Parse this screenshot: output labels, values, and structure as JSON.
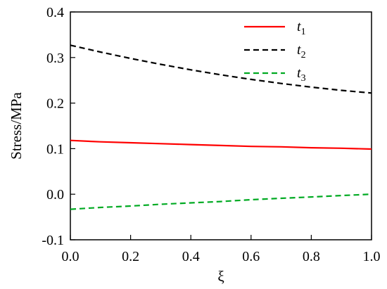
{
  "chart_data": {
    "type": "line",
    "xlabel": "ξ",
    "ylabel": "Stress/MPa",
    "xlim": [
      0.0,
      1.0
    ],
    "ylim": [
      -0.1,
      0.4
    ],
    "xticks": [
      "0.0",
      "0.2",
      "0.4",
      "0.6",
      "0.8",
      "1.0"
    ],
    "yticks": [
      "-0.1",
      "0.0",
      "0.1",
      "0.2",
      "0.3",
      "0.4"
    ],
    "grid": false,
    "legend_position": "top-right",
    "series": [
      {
        "name": "t1",
        "name_base": "t",
        "name_sub": "1",
        "color": "#ff0000",
        "style": "solid",
        "x": [
          0.0,
          0.1,
          0.2,
          0.3,
          0.4,
          0.5,
          0.6,
          0.7,
          0.8,
          0.9,
          1.0
        ],
        "y": [
          0.118,
          0.115,
          0.113,
          0.111,
          0.109,
          0.107,
          0.105,
          0.104,
          0.102,
          0.101,
          0.099
        ]
      },
      {
        "name": "t2",
        "name_base": "t",
        "name_sub": "2",
        "color": "#000000",
        "style": "dashed",
        "x": [
          0.0,
          0.1,
          0.2,
          0.3,
          0.4,
          0.5,
          0.6,
          0.7,
          0.8,
          0.9,
          1.0
        ],
        "y": [
          0.327,
          0.312,
          0.298,
          0.285,
          0.273,
          0.262,
          0.252,
          0.243,
          0.235,
          0.228,
          0.222
        ]
      },
      {
        "name": "t3",
        "name_base": "t",
        "name_sub": "3",
        "color": "#00aa22",
        "style": "dashed",
        "x": [
          0.0,
          0.1,
          0.2,
          0.3,
          0.4,
          0.5,
          0.6,
          0.7,
          0.8,
          0.9,
          1.0
        ],
        "y": [
          -0.033,
          -0.029,
          -0.026,
          -0.022,
          -0.019,
          -0.016,
          -0.012,
          -0.009,
          -0.006,
          -0.003,
          0.0
        ]
      }
    ]
  }
}
